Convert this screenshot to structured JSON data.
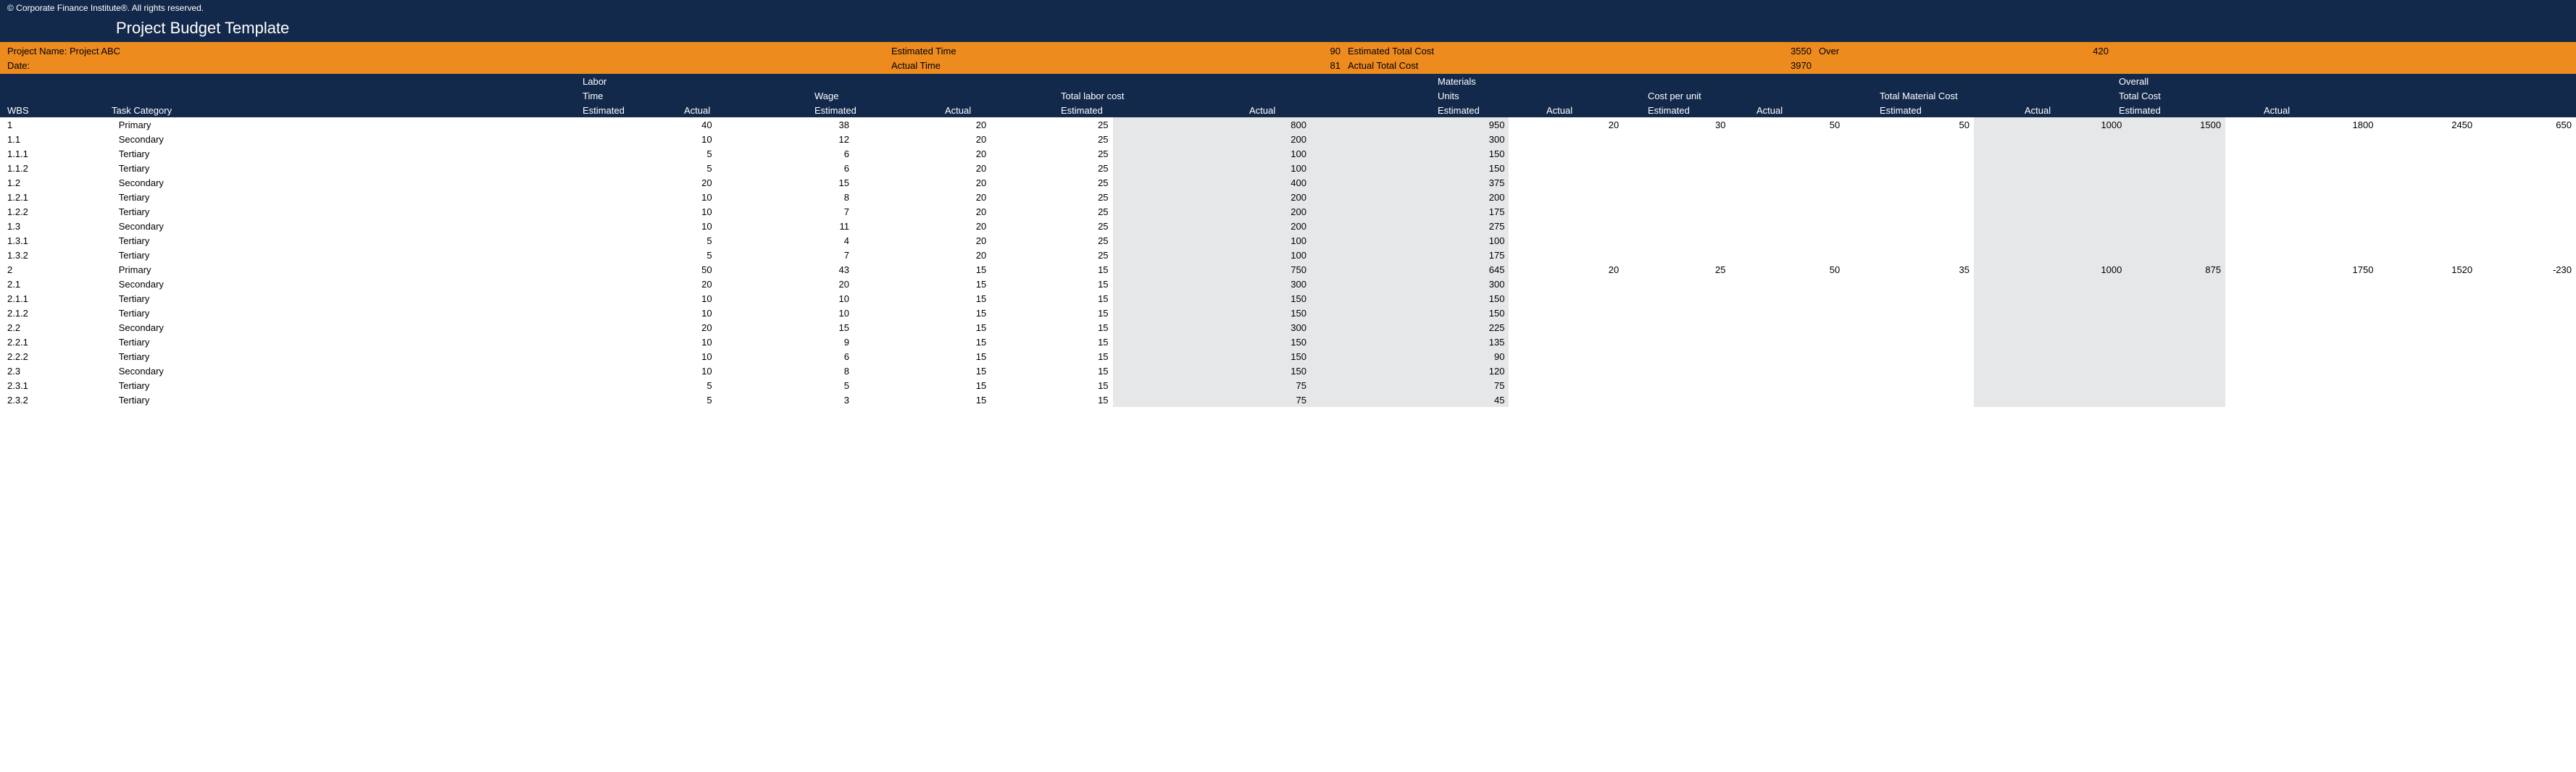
{
  "copyright": "© Corporate Finance Institute®. All rights reserved.",
  "title": "Project Budget Template",
  "info": {
    "projectNameLabel": "Project Name: Project ABC",
    "dateLabel": "Date:",
    "estTimeLabel": "Estimated Time",
    "actTimeLabel": "Actual Time",
    "estTimeVal": "90",
    "actTimeVal": "81",
    "estTotalCostLabel": "Estimated Total Cost",
    "actTotalCostLabel": "Actual Total Cost",
    "estTotalCostVal": "3550",
    "actTotalCostVal": "3970",
    "overLabel": "Over",
    "overVal": "420"
  },
  "headers": {
    "wbs": "WBS",
    "task": "Task Category",
    "labor": "Labor",
    "time": "Time",
    "wage": "Wage",
    "totalLabor": "Total labor cost",
    "materials": "Materials",
    "units": "Units",
    "costPerUnit": "Cost per unit",
    "totalMaterial": "Total Material Cost",
    "overall": "Overall",
    "totalCost": "Total Cost",
    "estimated": "Estimated",
    "actual": "Actual"
  },
  "rows": [
    {
      "wbs": "1",
      "task": "Primary",
      "te": "40",
      "ta": "38",
      "we": "20",
      "wa": "25",
      "tle": "800",
      "tla": "950",
      "ue": "20",
      "ua": "30",
      "cpe": "50",
      "cpa": "50",
      "tme": "1000",
      "tma": "1500",
      "oe": "1800",
      "oa": "2450",
      "var": "650"
    },
    {
      "wbs": "1.1",
      "task": "Secondary",
      "te": "10",
      "ta": "12",
      "we": "20",
      "wa": "25",
      "tle": "200",
      "tla": "300",
      "ue": "",
      "ua": "",
      "cpe": "",
      "cpa": "",
      "tme": "",
      "tma": "",
      "oe": "",
      "oa": "",
      "var": ""
    },
    {
      "wbs": "1.1.1",
      "task": "Tertiary",
      "te": "5",
      "ta": "6",
      "we": "20",
      "wa": "25",
      "tle": "100",
      "tla": "150",
      "ue": "",
      "ua": "",
      "cpe": "",
      "cpa": "",
      "tme": "",
      "tma": "",
      "oe": "",
      "oa": "",
      "var": ""
    },
    {
      "wbs": "1.1.2",
      "task": "Tertiary",
      "te": "5",
      "ta": "6",
      "we": "20",
      "wa": "25",
      "tle": "100",
      "tla": "150",
      "ue": "",
      "ua": "",
      "cpe": "",
      "cpa": "",
      "tme": "",
      "tma": "",
      "oe": "",
      "oa": "",
      "var": ""
    },
    {
      "wbs": "1.2",
      "task": "Secondary",
      "te": "20",
      "ta": "15",
      "we": "20",
      "wa": "25",
      "tle": "400",
      "tla": "375",
      "ue": "",
      "ua": "",
      "cpe": "",
      "cpa": "",
      "tme": "",
      "tma": "",
      "oe": "",
      "oa": "",
      "var": ""
    },
    {
      "wbs": "1.2.1",
      "task": "Tertiary",
      "te": "10",
      "ta": "8",
      "we": "20",
      "wa": "25",
      "tle": "200",
      "tla": "200",
      "ue": "",
      "ua": "",
      "cpe": "",
      "cpa": "",
      "tme": "",
      "tma": "",
      "oe": "",
      "oa": "",
      "var": ""
    },
    {
      "wbs": "1.2.2",
      "task": "Tertiary",
      "te": "10",
      "ta": "7",
      "we": "20",
      "wa": "25",
      "tle": "200",
      "tla": "175",
      "ue": "",
      "ua": "",
      "cpe": "",
      "cpa": "",
      "tme": "",
      "tma": "",
      "oe": "",
      "oa": "",
      "var": ""
    },
    {
      "wbs": "1.3",
      "task": "Secondary",
      "te": "10",
      "ta": "11",
      "we": "20",
      "wa": "25",
      "tle": "200",
      "tla": "275",
      "ue": "",
      "ua": "",
      "cpe": "",
      "cpa": "",
      "tme": "",
      "tma": "",
      "oe": "",
      "oa": "",
      "var": ""
    },
    {
      "wbs": "1.3.1",
      "task": "Tertiary",
      "te": "5",
      "ta": "4",
      "we": "20",
      "wa": "25",
      "tle": "100",
      "tla": "100",
      "ue": "",
      "ua": "",
      "cpe": "",
      "cpa": "",
      "tme": "",
      "tma": "",
      "oe": "",
      "oa": "",
      "var": ""
    },
    {
      "wbs": "1.3.2",
      "task": "Tertiary",
      "te": "5",
      "ta": "7",
      "we": "20",
      "wa": "25",
      "tle": "100",
      "tla": "175",
      "ue": "",
      "ua": "",
      "cpe": "",
      "cpa": "",
      "tme": "",
      "tma": "",
      "oe": "",
      "oa": "",
      "var": ""
    },
    {
      "wbs": "2",
      "task": "Primary",
      "te": "50",
      "ta": "43",
      "we": "15",
      "wa": "15",
      "tle": "750",
      "tla": "645",
      "ue": "20",
      "ua": "25",
      "cpe": "50",
      "cpa": "35",
      "tme": "1000",
      "tma": "875",
      "oe": "1750",
      "oa": "1520",
      "var": "-230"
    },
    {
      "wbs": "2.1",
      "task": "Secondary",
      "te": "20",
      "ta": "20",
      "we": "15",
      "wa": "15",
      "tle": "300",
      "tla": "300",
      "ue": "",
      "ua": "",
      "cpe": "",
      "cpa": "",
      "tme": "",
      "tma": "",
      "oe": "",
      "oa": "",
      "var": ""
    },
    {
      "wbs": "2.1.1",
      "task": "Tertiary",
      "te": "10",
      "ta": "10",
      "we": "15",
      "wa": "15",
      "tle": "150",
      "tla": "150",
      "ue": "",
      "ua": "",
      "cpe": "",
      "cpa": "",
      "tme": "",
      "tma": "",
      "oe": "",
      "oa": "",
      "var": ""
    },
    {
      "wbs": "2.1.2",
      "task": "Tertiary",
      "te": "10",
      "ta": "10",
      "we": "15",
      "wa": "15",
      "tle": "150",
      "tla": "150",
      "ue": "",
      "ua": "",
      "cpe": "",
      "cpa": "",
      "tme": "",
      "tma": "",
      "oe": "",
      "oa": "",
      "var": ""
    },
    {
      "wbs": "2.2",
      "task": "Secondary",
      "te": "20",
      "ta": "15",
      "we": "15",
      "wa": "15",
      "tle": "300",
      "tla": "225",
      "ue": "",
      "ua": "",
      "cpe": "",
      "cpa": "",
      "tme": "",
      "tma": "",
      "oe": "",
      "oa": "",
      "var": ""
    },
    {
      "wbs": "2.2.1",
      "task": "Tertiary",
      "te": "10",
      "ta": "9",
      "we": "15",
      "wa": "15",
      "tle": "150",
      "tla": "135",
      "ue": "",
      "ua": "",
      "cpe": "",
      "cpa": "",
      "tme": "",
      "tma": "",
      "oe": "",
      "oa": "",
      "var": ""
    },
    {
      "wbs": "2.2.2",
      "task": "Tertiary",
      "te": "10",
      "ta": "6",
      "we": "15",
      "wa": "15",
      "tle": "150",
      "tla": "90",
      "ue": "",
      "ua": "",
      "cpe": "",
      "cpa": "",
      "tme": "",
      "tma": "",
      "oe": "",
      "oa": "",
      "var": ""
    },
    {
      "wbs": "2.3",
      "task": "Secondary",
      "te": "10",
      "ta": "8",
      "we": "15",
      "wa": "15",
      "tle": "150",
      "tla": "120",
      "ue": "",
      "ua": "",
      "cpe": "",
      "cpa": "",
      "tme": "",
      "tma": "",
      "oe": "",
      "oa": "",
      "var": ""
    },
    {
      "wbs": "2.3.1",
      "task": "Tertiary",
      "te": "5",
      "ta": "5",
      "we": "15",
      "wa": "15",
      "tle": "75",
      "tla": "75",
      "ue": "",
      "ua": "",
      "cpe": "",
      "cpa": "",
      "tme": "",
      "tma": "",
      "oe": "",
      "oa": "",
      "var": ""
    },
    {
      "wbs": "2.3.2",
      "task": "Tertiary",
      "te": "5",
      "ta": "3",
      "we": "15",
      "wa": "15",
      "tle": "75",
      "tla": "45",
      "ue": "",
      "ua": "",
      "cpe": "",
      "cpa": "",
      "tme": "",
      "tma": "",
      "oe": "",
      "oa": "",
      "var": ""
    }
  ]
}
